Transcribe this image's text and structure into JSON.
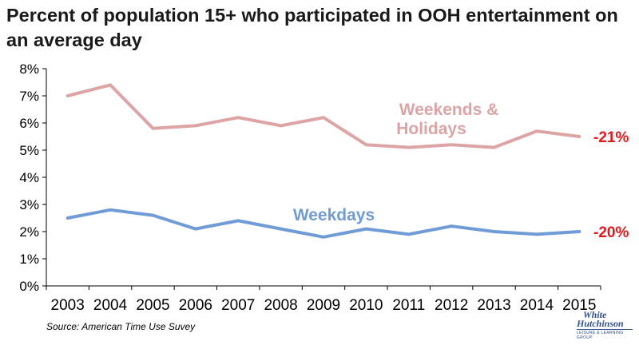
{
  "title": "Percent of population 15+ who participated in OOH entertainment on an average day",
  "source": "Source: American Time Use Suvey",
  "logo": {
    "line1": "White",
    "line2": "Hutchinson",
    "line3": "LEISURE & LEARNING GROUP"
  },
  "colors": {
    "weekends": "#dca4a4",
    "weekdays": "#6f9bd7",
    "change": "#e8161a",
    "axis": "#000000",
    "text": "#1a1a1a"
  },
  "chart_data": {
    "type": "line",
    "title": "Percent of population 15+ who participated in OOH entertainment on an average day",
    "x": [
      "2003",
      "2004",
      "2005",
      "2006",
      "2007",
      "2008",
      "2009",
      "2010",
      "2011",
      "2012",
      "2013",
      "2014",
      "2015"
    ],
    "ylim": [
      0,
      8
    ],
    "yticks": [
      "0%",
      "1%",
      "2%",
      "3%",
      "4%",
      "5%",
      "6%",
      "7%",
      "8%"
    ],
    "grid": false,
    "series": [
      {
        "name": "Weekends & Holidays",
        "values": [
          7.0,
          7.4,
          5.8,
          5.9,
          6.2,
          5.9,
          6.2,
          5.2,
          5.1,
          5.2,
          5.1,
          5.7,
          5.5
        ],
        "change_label": "-21%"
      },
      {
        "name": "Weekdays",
        "values": [
          2.5,
          2.8,
          2.6,
          2.1,
          2.4,
          2.1,
          1.8,
          2.1,
          1.9,
          2.2,
          2.0,
          1.9,
          2.0
        ],
        "change_label": "-20%"
      }
    ]
  }
}
